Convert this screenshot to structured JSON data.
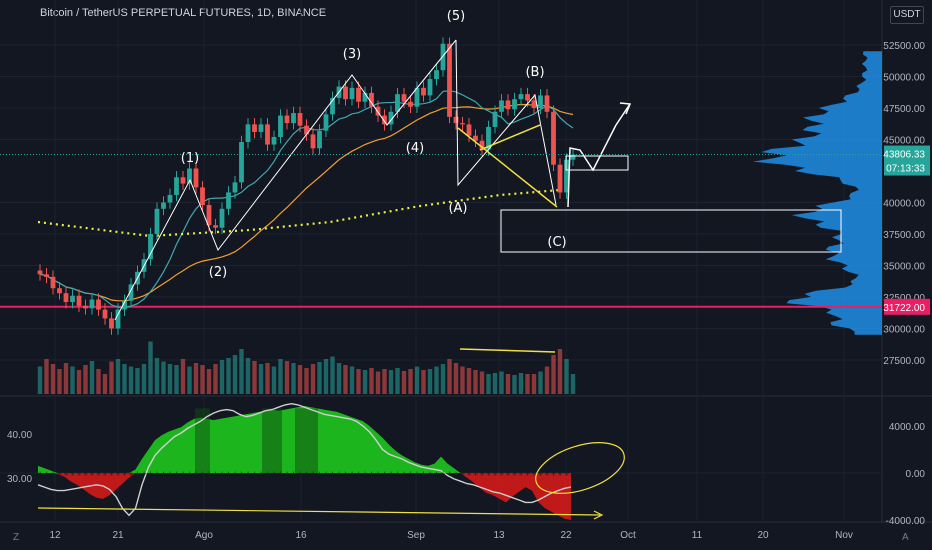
{
  "header": {
    "title": "Bitcoin / TetherUS PERPETUAL FUTURES, 1D, BINANCE",
    "currency_button": "USDT"
  },
  "colors": {
    "background": "#131722",
    "grid": "#1e222d",
    "text": "#b2b5be",
    "up": "#26a69a",
    "down": "#ef5350",
    "ema_fast": "#3fa8ad",
    "ema_slow": "#f0a030",
    "ma_dotted": "#e9f040",
    "support_line": "#e91e63",
    "volume_profile": "#2196f3",
    "macd_up": "#1ec71e",
    "macd_down": "#d31919"
  },
  "main_axis": {
    "ticks": [
      "52500.00",
      "50000.00",
      "47500.00",
      "45000.00",
      "40000.00",
      "37500.00",
      "35000.00",
      "32500.00",
      "30000.00",
      "27500.00"
    ],
    "tick_values": [
      52500,
      50000,
      47500,
      45000,
      40000,
      37500,
      35000,
      32500,
      30000,
      27500
    ],
    "current_price": "43806.33",
    "countdown": "07:13:33",
    "support_price": "31722.00"
  },
  "macd_axis": {
    "ticks": [
      "4000.00",
      "0.00",
      "-4000.00"
    ],
    "tick_values": [
      4000,
      0,
      -4000
    ],
    "left_ticks": [
      "40.00",
      "30.00"
    ]
  },
  "x_axis": {
    "labels": [
      "12",
      "21",
      "Ago",
      "16",
      "Sep",
      "13",
      "22",
      "Oct",
      "11",
      "20",
      "Nov"
    ]
  },
  "wave_labels": [
    "(1)",
    "(2)",
    "(3)",
    "(4)",
    "(5)",
    "(A)",
    "(B)",
    "(C)"
  ],
  "bottom_bar": {
    "left": "Z",
    "right": "A"
  },
  "chart_data": {
    "type": "candlestick",
    "title": "Bitcoin / TetherUS PERPETUAL FUTURES, 1D, BINANCE",
    "ylim": [
      26500,
      54500
    ],
    "support_level": 31722,
    "current_price": 43806.33,
    "closes": [
      34300,
      34100,
      33200,
      32800,
      32100,
      32600,
      31800,
      31600,
      32300,
      31500,
      30800,
      30000,
      31500,
      32200,
      33500,
      34500,
      35500,
      37500,
      39500,
      40000,
      40600,
      42000,
      41500,
      42700,
      41200,
      39800,
      38200,
      38000,
      39500,
      40800,
      41600,
      44800,
      46200,
      45600,
      46200,
      44600,
      45200,
      46900,
      46300,
      47100,
      46100,
      45400,
      44300,
      45700,
      47000,
      48300,
      49200,
      48200,
      49100,
      48000,
      48700,
      47600,
      46900,
      46200,
      47200,
      48600,
      48000,
      47600,
      49100,
      48500,
      49800,
      50500,
      52600,
      46800,
      46300,
      46200,
      45300,
      44900,
      44200,
      46000,
      47200,
      48100,
      47400,
      48200,
      48600,
      48100,
      47500,
      48500,
      47200,
      43000,
      40800,
      43400,
      43806
    ],
    "volume_relative": [
      0.55,
      0.7,
      0.6,
      0.5,
      0.62,
      0.55,
      0.48,
      0.58,
      0.66,
      0.5,
      0.4,
      0.65,
      0.7,
      0.6,
      0.55,
      0.52,
      0.6,
      1.05,
      0.72,
      0.65,
      0.6,
      0.58,
      0.7,
      0.55,
      0.62,
      0.58,
      0.5,
      0.6,
      0.68,
      0.72,
      0.78,
      0.9,
      0.72,
      0.66,
      0.6,
      0.62,
      0.55,
      0.7,
      0.66,
      0.62,
      0.58,
      0.52,
      0.6,
      0.64,
      0.7,
      0.75,
      0.62,
      0.58,
      0.55,
      0.5,
      0.48,
      0.52,
      0.45,
      0.5,
      0.48,
      0.52,
      0.46,
      0.5,
      0.55,
      0.48,
      0.5,
      0.55,
      0.6,
      0.7,
      0.62,
      0.55,
      0.52,
      0.48,
      0.45,
      0.4,
      0.42,
      0.45,
      0.4,
      0.38,
      0.42,
      0.4,
      0.4,
      0.45,
      0.55,
      0.78,
      0.9,
      0.7,
      0.4
    ],
    "macd": [
      600,
      400,
      200,
      -100,
      -300,
      -700,
      -1000,
      -1400,
      -1800,
      -2100,
      -2200,
      -1900,
      -1400,
      -900,
      -400,
      300,
      1200,
      2000,
      2800,
      3200,
      3500,
      3700,
      3900,
      4300,
      4600,
      4700,
      4600,
      4500,
      4600,
      4700,
      4800,
      4900,
      5000,
      5100,
      5200,
      5300,
      5400,
      5300,
      5400,
      5500,
      5600,
      5700,
      5600,
      5500,
      5400,
      5300,
      5200,
      5000,
      4800,
      4600,
      4400,
      4000,
      3500,
      3000,
      2400,
      1900,
      1500,
      1200,
      900,
      700,
      600,
      800,
      1400,
      800,
      400,
      0,
      -400,
      -800,
      -1300,
      -1700,
      -1900,
      -2200,
      -2500,
      -2000,
      -1600,
      -1200,
      -1500,
      -2500,
      -3000,
      -3300,
      -3600,
      -3900,
      -4000
    ],
    "macd_signal": [
      -1000,
      -1200,
      -1400,
      -1500,
      -1500,
      -1400,
      -1300,
      -1200,
      -1100,
      -1000,
      -1100,
      -1400,
      -2000,
      -3000,
      -3600,
      -3000,
      -1000,
      500,
      1500,
      2100,
      2600,
      3100,
      3400,
      3800,
      4100,
      4400,
      4800,
      5100,
      5300,
      5400,
      5300,
      5000,
      4800,
      4900,
      5100,
      5300,
      5400,
      5600,
      5800,
      5900,
      5800,
      5600,
      5400,
      5200,
      5000,
      4900,
      4800,
      4700,
      4600,
      4400,
      4000,
      3500,
      2800,
      2000,
      1600,
      1400,
      1200,
      900,
      700,
      500,
      400,
      300,
      200,
      -200,
      -500,
      -700,
      -900,
      -1000,
      -1200,
      -1400,
      -1600,
      -1700,
      -1900,
      -2100,
      -2300,
      -2500,
      -2500,
      -2300,
      -2000,
      -1700,
      -1500,
      -1300,
      -1200
    ],
    "macd_left_scale": [
      40,
      30
    ]
  }
}
